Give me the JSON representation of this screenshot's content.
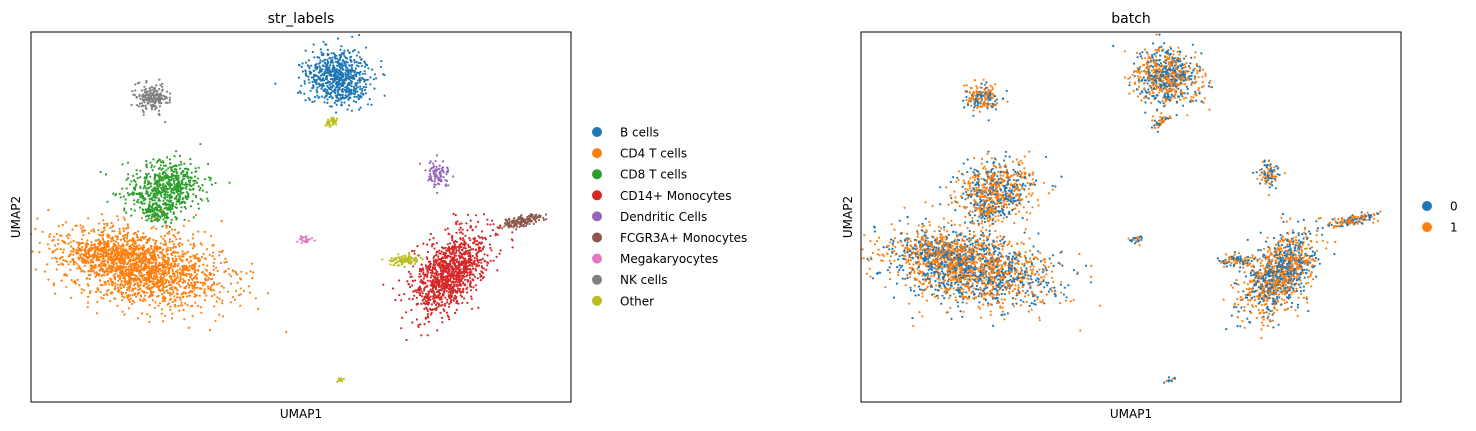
{
  "chart_data": [
    {
      "type": "scatter",
      "title": "str_labels",
      "xlabel": "UMAP1",
      "ylabel": "UMAP2",
      "xticks": "none",
      "yticks": "none",
      "grid": false,
      "legend_position": "right-outside",
      "legend": [
        {
          "label": "B cells",
          "color": "#1f77b4"
        },
        {
          "label": "CD4 T cells",
          "color": "#ff7f0e"
        },
        {
          "label": "CD8 T cells",
          "color": "#2ca02c"
        },
        {
          "label": "CD14+ Monocytes",
          "color": "#d62728"
        },
        {
          "label": "Dendritic Cells",
          "color": "#9467bd"
        },
        {
          "label": "FCGR3A+ Monocytes",
          "color": "#8c564b"
        },
        {
          "label": "Megakaryocytes",
          "color": "#e377c2"
        },
        {
          "label": "NK cells",
          "color": "#7f7f7f"
        },
        {
          "label": "Other",
          "color": "#bcbd22"
        }
      ]
    },
    {
      "type": "scatter",
      "title": "batch",
      "xlabel": "UMAP1",
      "ylabel": "UMAP2",
      "xticks": "none",
      "yticks": "none",
      "grid": false,
      "legend_position": "right-outside",
      "legend": [
        {
          "label": "0",
          "color": "#1f77b4"
        },
        {
          "label": "1",
          "color": "#ff7f0e"
        }
      ]
    }
  ]
}
